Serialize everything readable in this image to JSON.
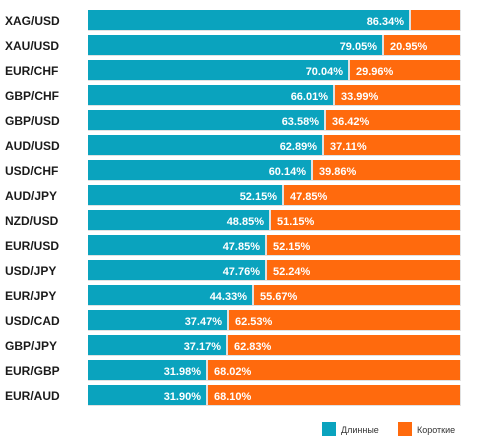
{
  "colors": {
    "long": "#0aa3be",
    "short": "#ff6a0d",
    "bar_bg": "#e1e1e1"
  },
  "chart_data": {
    "type": "bar",
    "orientation": "horizontal",
    "stacked": true,
    "categories": [
      "XAG/USD",
      "XAU/USD",
      "EUR/CHF",
      "GBP/CHF",
      "GBP/USD",
      "AUD/USD",
      "USD/CHF",
      "AUD/JPY",
      "NZD/USD",
      "EUR/USD",
      "USD/JPY",
      "EUR/JPY",
      "USD/CAD",
      "GBP/JPY",
      "EUR/GBP",
      "EUR/AUD"
    ],
    "series": [
      {
        "name": "Длинные",
        "values": [
          86.34,
          79.05,
          70.04,
          66.01,
          63.58,
          62.89,
          60.14,
          52.15,
          48.85,
          47.85,
          47.76,
          44.33,
          37.47,
          37.17,
          31.98,
          31.9
        ]
      },
      {
        "name": "Короткие",
        "values": [
          13.66,
          20.95,
          29.96,
          33.99,
          36.42,
          37.11,
          39.86,
          47.85,
          51.15,
          52.15,
          52.24,
          55.67,
          62.53,
          62.83,
          68.02,
          68.1
        ]
      }
    ],
    "data_labels": {
      "long": [
        "86.34%",
        "79.05%",
        "70.04%",
        "66.01%",
        "63.58%",
        "62.89%",
        "60.14%",
        "52.15%",
        "48.85%",
        "47.85%",
        "47.76%",
        "44.33%",
        "37.47%",
        "37.17%",
        "31.98%",
        "31.90%"
      ],
      "short": [
        "",
        "20.95%",
        "29.96%",
        "33.99%",
        "36.42%",
        "37.11%",
        "39.86%",
        "47.85%",
        "51.15%",
        "52.15%",
        "52.24%",
        "55.67%",
        "62.53%",
        "62.83%",
        "68.02%",
        "68.10%"
      ]
    },
    "xlim": [
      0,
      100
    ],
    "grid": false,
    "legend_position": "bottom-right"
  }
}
